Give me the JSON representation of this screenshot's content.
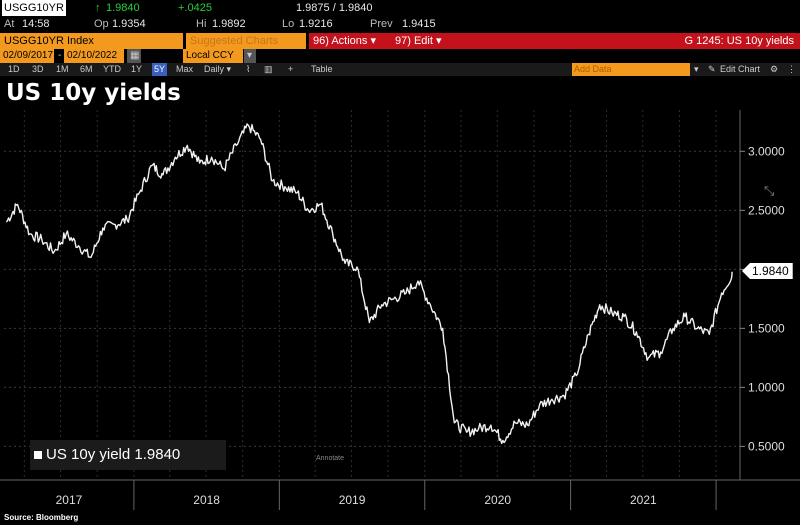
{
  "quote": {
    "ticker": "USGG10YR",
    "arrow": "↑",
    "last": "1.9840",
    "change": "+.0425",
    "bid_ask": "1.9875 / 1.9840",
    "at_label": "At",
    "at_time": "14:58",
    "op_label": "Op",
    "op": "1.9354",
    "hi_label": "Hi",
    "hi": "1.9892",
    "lo_label": "Lo",
    "lo": "1.9216",
    "prev_label": "Prev",
    "prev": "1.9415"
  },
  "menubar": {
    "security": "USGG10YR Index",
    "suggested": "Suggested Charts",
    "actions": "96) Actions ▾",
    "edit": "97) Edit ▾",
    "chart_id": "G 1245: US 10y yields"
  },
  "daterange": {
    "start": "02/09/2017",
    "end": "02/10/2022",
    "currency": "Local CCY"
  },
  "toolbar": {
    "periods": [
      "1D",
      "3D",
      "1M",
      "6M",
      "YTD",
      "1Y",
      "5Y",
      "Max"
    ],
    "selected_period": "5Y",
    "frequency": "Daily ▾",
    "table": "Table",
    "add_data": "Add Data",
    "edit_chart": "Edit Chart"
  },
  "chart_title": "US 10y yields",
  "legend": {
    "label": "US 10y yield 1.9840"
  },
  "annotation_label": "Annotate",
  "source": "Source: Bloomberg",
  "accent": {
    "orange": "#f39a1e",
    "red": "#c3121c",
    "green": "#27d13a"
  },
  "chart_data": {
    "type": "line",
    "title": "US 10y yields",
    "ylim": [
      0.3,
      3.35
    ],
    "y_ticks": [
      "0.5000",
      "1.0000",
      "1.5000",
      "2.0000",
      "2.5000",
      "3.0000"
    ],
    "x_ticks": [
      "2017",
      "2018",
      "2019",
      "2020",
      "2021"
    ],
    "last_value_label": "1.9840",
    "grid": true,
    "series": [
      {
        "name": "US 10y yield",
        "points": [
          [
            "2017-02",
            2.4
          ],
          [
            "2017-03",
            2.55
          ],
          [
            "2017-04",
            2.3
          ],
          [
            "2017-05",
            2.25
          ],
          [
            "2017-06",
            2.15
          ],
          [
            "2017-07",
            2.3
          ],
          [
            "2017-08",
            2.2
          ],
          [
            "2017-09",
            2.1
          ],
          [
            "2017-10",
            2.35
          ],
          [
            "2017-11",
            2.38
          ],
          [
            "2017-12",
            2.42
          ],
          [
            "2018-01",
            2.65
          ],
          [
            "2018-02",
            2.88
          ],
          [
            "2018-03",
            2.8
          ],
          [
            "2018-04",
            2.95
          ],
          [
            "2018-05",
            3.05
          ],
          [
            "2018-06",
            2.9
          ],
          [
            "2018-07",
            2.95
          ],
          [
            "2018-08",
            2.85
          ],
          [
            "2018-09",
            3.05
          ],
          [
            "2018-10",
            3.22
          ],
          [
            "2018-11",
            3.1
          ],
          [
            "2018-12",
            2.75
          ],
          [
            "2019-01",
            2.7
          ],
          [
            "2019-02",
            2.65
          ],
          [
            "2019-03",
            2.5
          ],
          [
            "2019-04",
            2.55
          ],
          [
            "2019-05",
            2.3
          ],
          [
            "2019-06",
            2.05
          ],
          [
            "2019-07",
            2.02
          ],
          [
            "2019-08",
            1.55
          ],
          [
            "2019-09",
            1.7
          ],
          [
            "2019-10",
            1.75
          ],
          [
            "2019-11",
            1.8
          ],
          [
            "2019-12",
            1.9
          ],
          [
            "2020-01",
            1.7
          ],
          [
            "2020-02",
            1.5
          ],
          [
            "2020-03",
            0.7
          ],
          [
            "2020-04",
            0.62
          ],
          [
            "2020-05",
            0.65
          ],
          [
            "2020-06",
            0.68
          ],
          [
            "2020-07",
            0.55
          ],
          [
            "2020-08",
            0.7
          ],
          [
            "2020-09",
            0.68
          ],
          [
            "2020-10",
            0.85
          ],
          [
            "2020-11",
            0.9
          ],
          [
            "2020-12",
            0.93
          ],
          [
            "2021-01",
            1.1
          ],
          [
            "2021-02",
            1.45
          ],
          [
            "2021-03",
            1.7
          ],
          [
            "2021-04",
            1.63
          ],
          [
            "2021-05",
            1.6
          ],
          [
            "2021-06",
            1.47
          ],
          [
            "2021-07",
            1.25
          ],
          [
            "2021-08",
            1.3
          ],
          [
            "2021-09",
            1.5
          ],
          [
            "2021-10",
            1.6
          ],
          [
            "2021-11",
            1.5
          ],
          [
            "2021-12",
            1.45
          ],
          [
            "2022-01",
            1.8
          ],
          [
            "2022-02",
            1.98
          ]
        ]
      }
    ]
  }
}
